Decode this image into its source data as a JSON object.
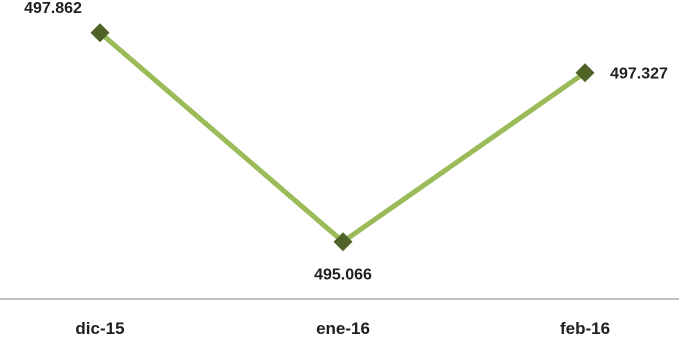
{
  "chart_data": {
    "type": "line",
    "categories": [
      "dic-15",
      "ene-16",
      "feb-16"
    ],
    "series": [
      {
        "values": [
          497.862,
          495.066,
          497.327
        ]
      }
    ],
    "data_labels": [
      "497.862",
      "495.066",
      "497.327"
    ],
    "title": "",
    "xlabel": "",
    "ylabel": "",
    "ylim": [
      494.3,
      498.3
    ],
    "grid": false,
    "legend": "none",
    "colors": {
      "line": "#9bbb59",
      "marker": "#4f6228",
      "axis": "#7f7f7f"
    }
  }
}
